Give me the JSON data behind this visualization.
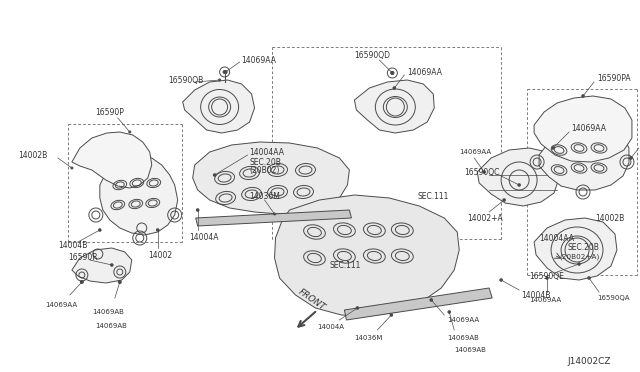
{
  "bg_color": "#ffffff",
  "line_color": "#4a4a4a",
  "text_color": "#333333",
  "part_number": "J14002CZ",
  "figsize": [
    6.4,
    3.72
  ],
  "dpi": 100,
  "xlim": [
    0,
    640
  ],
  "ylim": [
    0,
    372
  ]
}
